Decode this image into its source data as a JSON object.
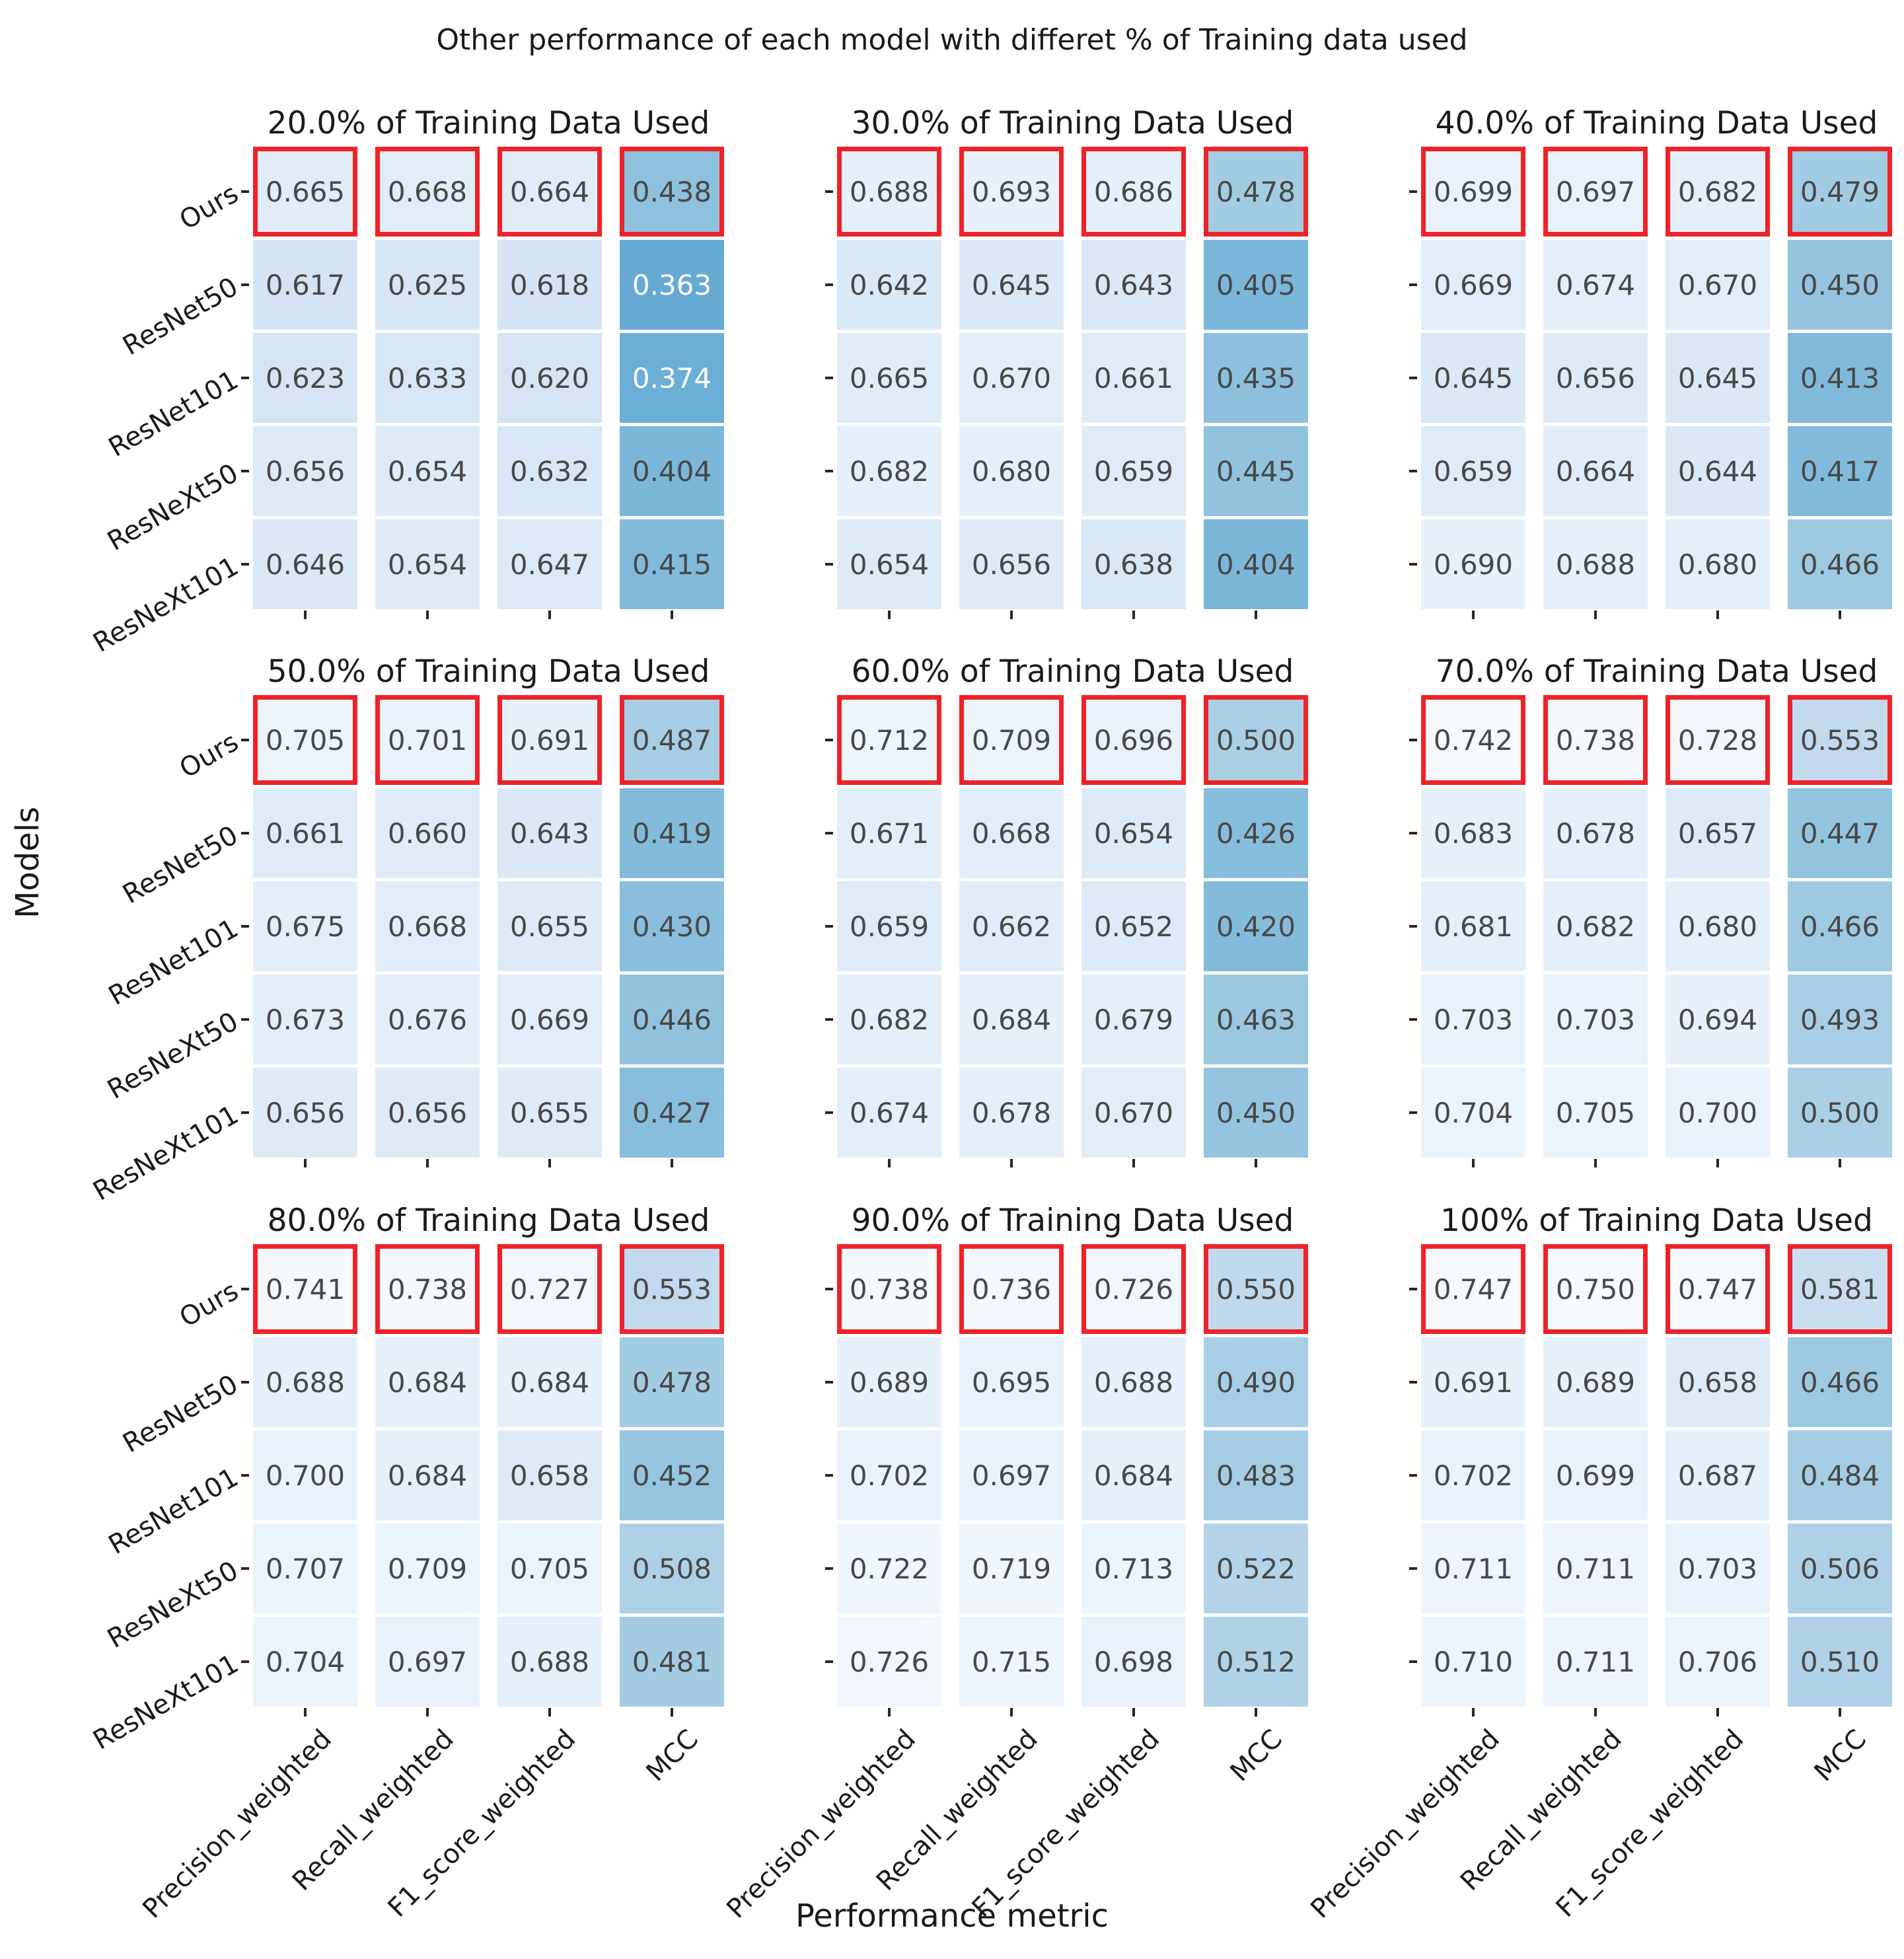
{
  "title": "Other performance of each model with differet % of Training data used",
  "xlabel": "Performance metric",
  "ylabel": "Models",
  "chart_data": {
    "type": "heatmap",
    "rows": [
      "Ours",
      "ResNet50",
      "ResNet101",
      "ResNeXt50",
      "ResNeXt101"
    ],
    "columns": [
      "Precision_weighted",
      "Recall_weighted",
      "F1_score_weighted",
      "MCC"
    ],
    "colormap": "Blues_r",
    "vmin": 0,
    "vmax": 0.75,
    "annotation_format": "3_decimals",
    "highlight_row": "Ours",
    "highlight_row_index": 0,
    "colors": {
      "highlight_border": "#ee2329",
      "annot_dark": "#484848",
      "annot_light": "#ffffff",
      "tick": "#262626"
    },
    "layout": {
      "grid_rows": 3,
      "grid_cols": 3,
      "row_labels_on": "left_column_only",
      "col_labels_on": "bottom_row_only"
    },
    "subplots": [
      {
        "title": "20.0% of Training Data Used",
        "values": [
          [
            0.665,
            0.668,
            0.664,
            0.438
          ],
          [
            0.617,
            0.625,
            0.618,
            0.363
          ],
          [
            0.623,
            0.633,
            0.62,
            0.374
          ],
          [
            0.656,
            0.654,
            0.632,
            0.404
          ],
          [
            0.646,
            0.654,
            0.647,
            0.415
          ]
        ]
      },
      {
        "title": "30.0% of Training Data Used",
        "values": [
          [
            0.688,
            0.693,
            0.686,
            0.478
          ],
          [
            0.642,
            0.645,
            0.643,
            0.405
          ],
          [
            0.665,
            0.67,
            0.661,
            0.435
          ],
          [
            0.682,
            0.68,
            0.659,
            0.445
          ],
          [
            0.654,
            0.656,
            0.638,
            0.404
          ]
        ]
      },
      {
        "title": "40.0% of Training Data Used",
        "values": [
          [
            0.699,
            0.697,
            0.682,
            0.479
          ],
          [
            0.669,
            0.674,
            0.67,
            0.45
          ],
          [
            0.645,
            0.656,
            0.645,
            0.413
          ],
          [
            0.659,
            0.664,
            0.644,
            0.417
          ],
          [
            0.69,
            0.688,
            0.68,
            0.466
          ]
        ]
      },
      {
        "title": "50.0% of Training Data Used",
        "values": [
          [
            0.705,
            0.701,
            0.691,
            0.487
          ],
          [
            0.661,
            0.66,
            0.643,
            0.419
          ],
          [
            0.675,
            0.668,
            0.655,
            0.43
          ],
          [
            0.673,
            0.676,
            0.669,
            0.446
          ],
          [
            0.656,
            0.656,
            0.655,
            0.427
          ]
        ]
      },
      {
        "title": "60.0% of Training Data Used",
        "values": [
          [
            0.712,
            0.709,
            0.696,
            0.5
          ],
          [
            0.671,
            0.668,
            0.654,
            0.426
          ],
          [
            0.659,
            0.662,
            0.652,
            0.42
          ],
          [
            0.682,
            0.684,
            0.679,
            0.463
          ],
          [
            0.674,
            0.678,
            0.67,
            0.45
          ]
        ]
      },
      {
        "title": "70.0% of Training Data Used",
        "values": [
          [
            0.742,
            0.738,
            0.728,
            0.553
          ],
          [
            0.683,
            0.678,
            0.657,
            0.447
          ],
          [
            0.681,
            0.682,
            0.68,
            0.466
          ],
          [
            0.703,
            0.703,
            0.694,
            0.493
          ],
          [
            0.704,
            0.705,
            0.7,
            0.5
          ]
        ]
      },
      {
        "title": "80.0% of Training Data Used",
        "values": [
          [
            0.741,
            0.738,
            0.727,
            0.553
          ],
          [
            0.688,
            0.684,
            0.684,
            0.478
          ],
          [
            0.7,
            0.684,
            0.658,
            0.452
          ],
          [
            0.707,
            0.709,
            0.705,
            0.508
          ],
          [
            0.704,
            0.697,
            0.688,
            0.481
          ]
        ]
      },
      {
        "title": "90.0% of Training Data Used",
        "values": [
          [
            0.738,
            0.736,
            0.726,
            0.55
          ],
          [
            0.689,
            0.695,
            0.688,
            0.49
          ],
          [
            0.702,
            0.697,
            0.684,
            0.483
          ],
          [
            0.722,
            0.719,
            0.713,
            0.522
          ],
          [
            0.726,
            0.715,
            0.698,
            0.512
          ]
        ]
      },
      {
        "title": "100% of Training Data Used",
        "values": [
          [
            0.747,
            0.75,
            0.747,
            0.581
          ],
          [
            0.691,
            0.689,
            0.658,
            0.466
          ],
          [
            0.702,
            0.699,
            0.687,
            0.484
          ],
          [
            0.711,
            0.711,
            0.703,
            0.506
          ],
          [
            0.71,
            0.711,
            0.706,
            0.51
          ]
        ]
      }
    ]
  }
}
